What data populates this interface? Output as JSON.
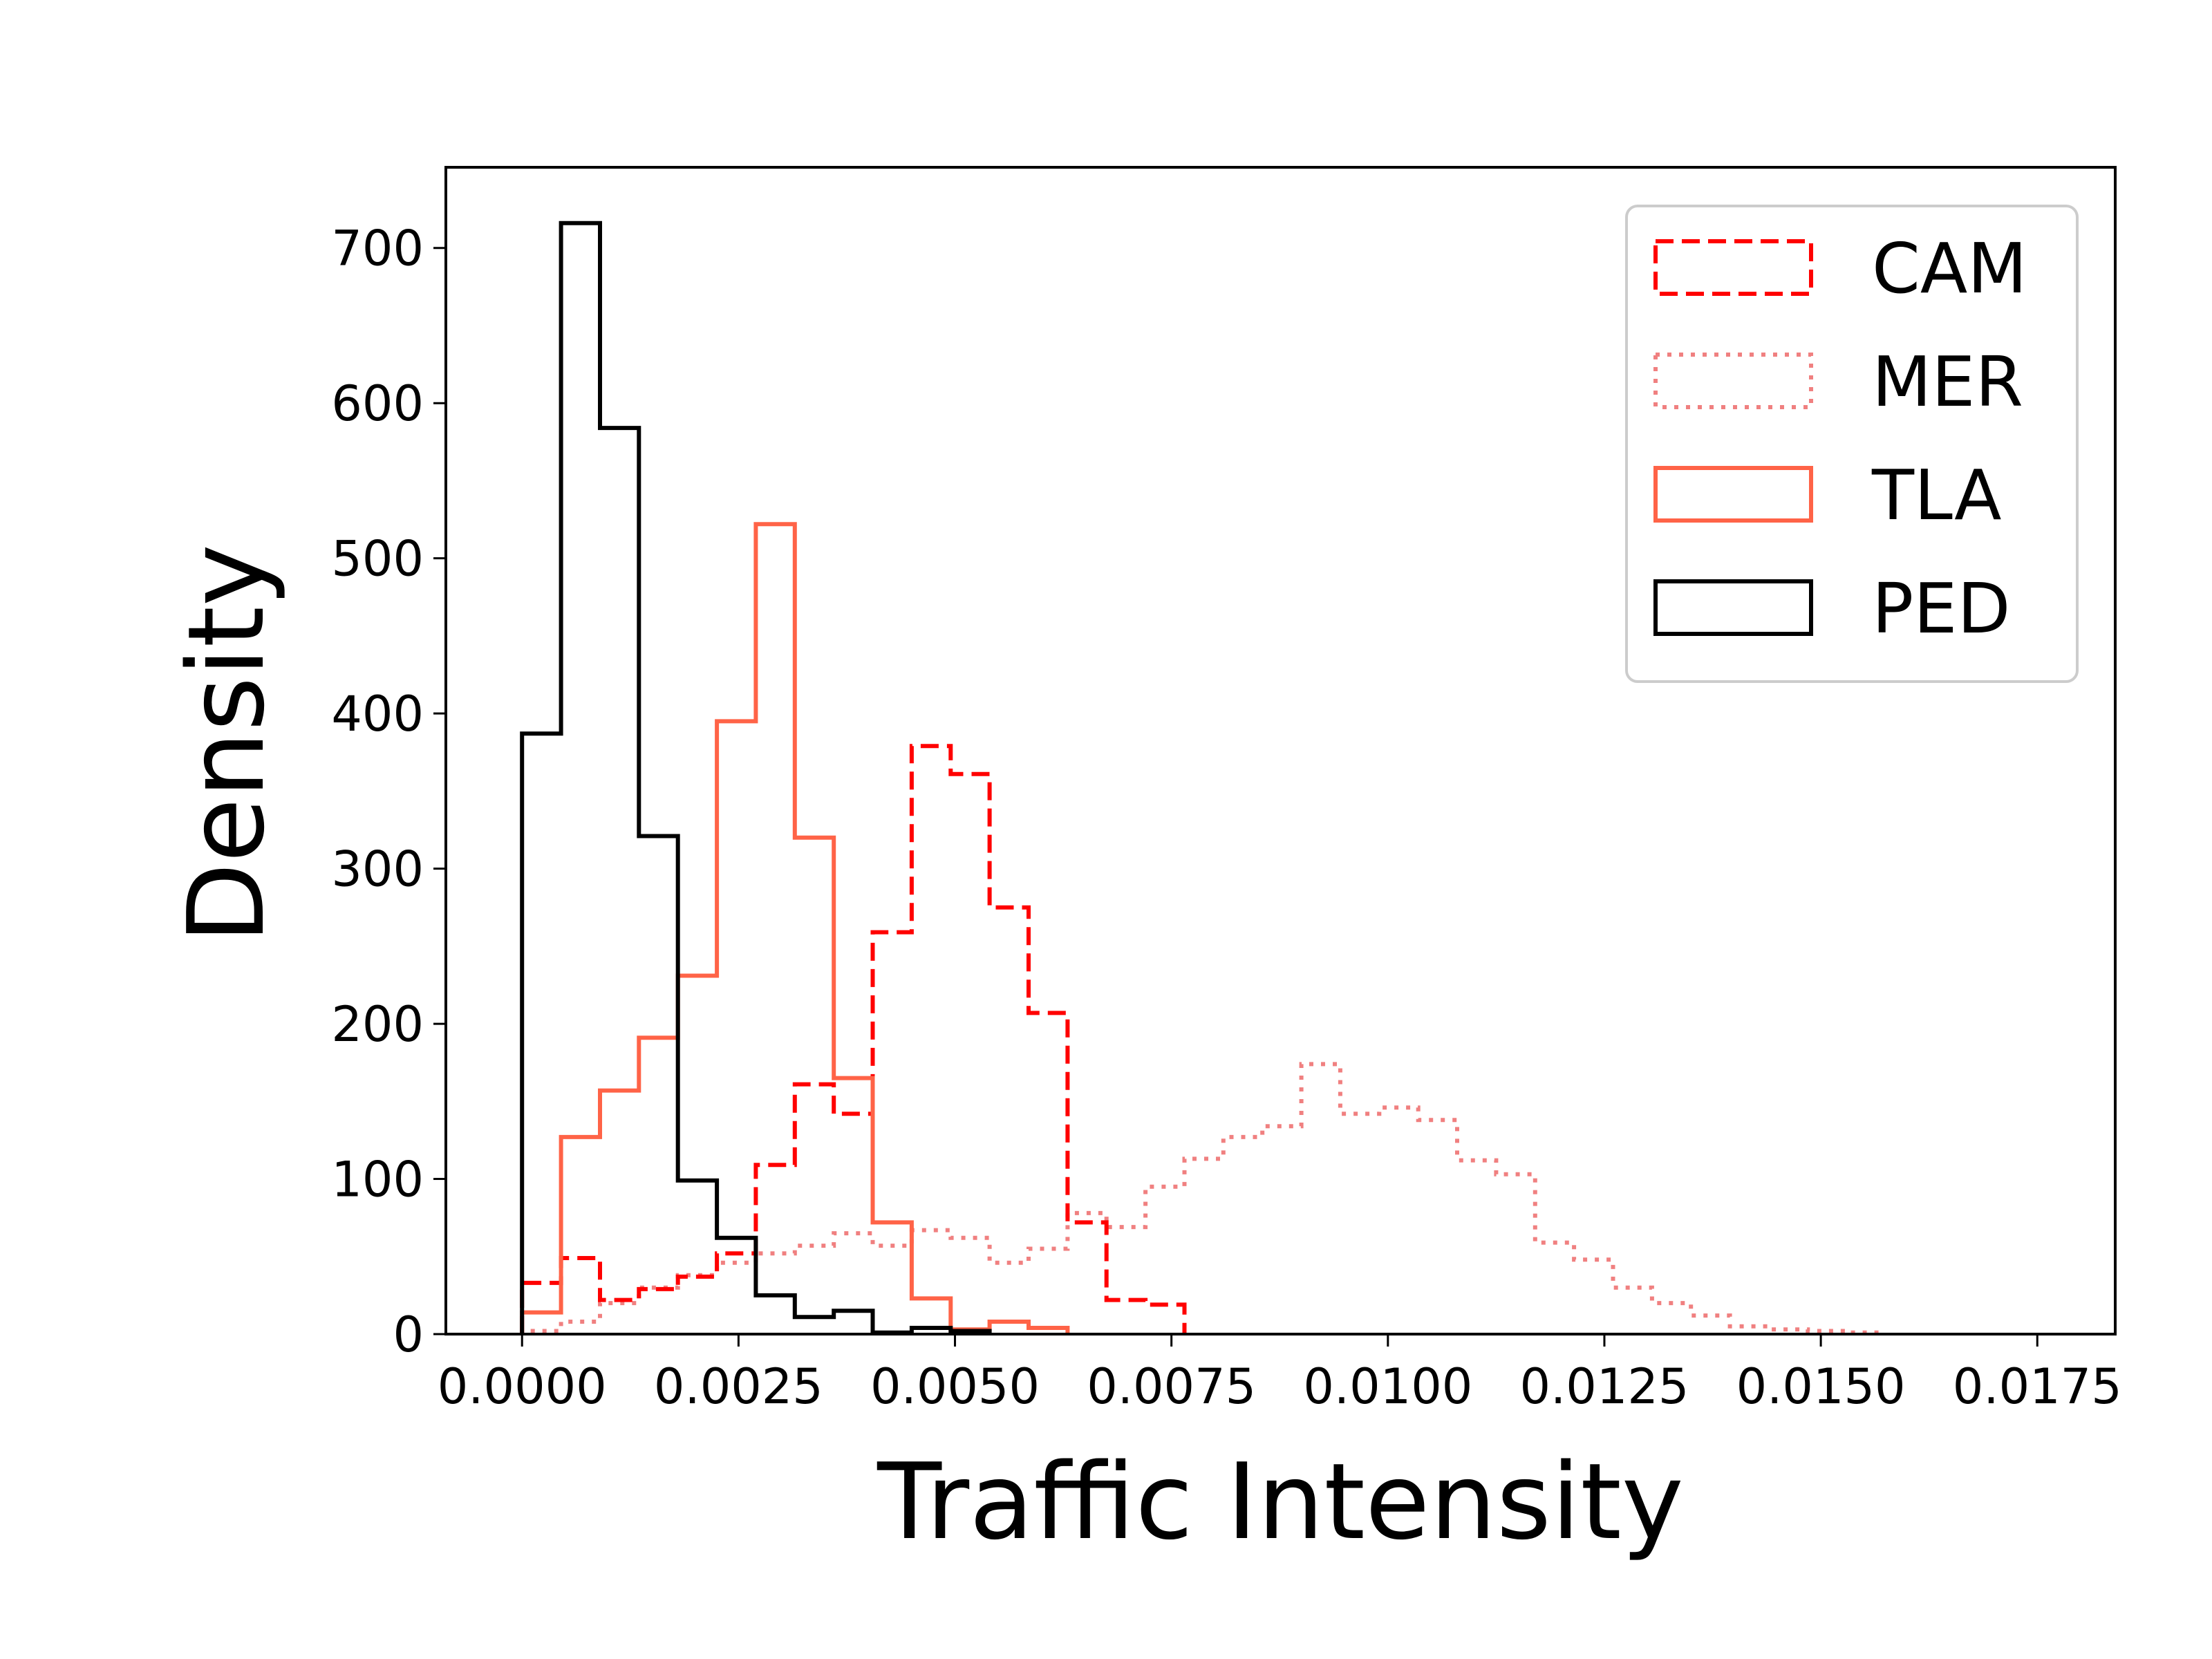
{
  "chart_data": {
    "type": "histogram-step",
    "title": "",
    "xlabel": "Traffic Intensity",
    "ylabel": "Density",
    "xlim": [
      -0.00088,
      0.0184
    ],
    "ylim": [
      0,
      752
    ],
    "xticks": [
      0.0,
      0.0025,
      0.005,
      0.0075,
      0.01,
      0.0125,
      0.015,
      0.0175
    ],
    "xtick_labels": [
      "0.0000",
      "0.0025",
      "0.0050",
      "0.0075",
      "0.0100",
      "0.0125",
      "0.0150",
      "0.0175"
    ],
    "yticks": [
      0,
      100,
      200,
      300,
      400,
      500,
      600,
      700
    ],
    "ytick_labels": [
      "0",
      "100",
      "200",
      "300",
      "400",
      "500",
      "600",
      "700"
    ],
    "grid": false,
    "legend_position": "top-right",
    "series": [
      {
        "name": "CAM",
        "color": "#ff0000",
        "style": "dashed",
        "edges": [
          0.0,
          0.00045,
          0.0009,
          0.00135,
          0.0018,
          0.00225,
          0.0027,
          0.00315,
          0.0036,
          0.00405,
          0.0045,
          0.00495,
          0.0054,
          0.00585,
          0.0063,
          0.00675,
          0.0072,
          0.00765
        ],
        "values": [
          33,
          49,
          22,
          29,
          37,
          52,
          109,
          161,
          142,
          259,
          379,
          361,
          275,
          207,
          72,
          22,
          19
        ]
      },
      {
        "name": "MER",
        "color": "#f08080",
        "style": "dotted",
        "edges": [
          0.0,
          0.00045,
          0.0009,
          0.00135,
          0.0018,
          0.00225,
          0.0027,
          0.00315,
          0.0036,
          0.00405,
          0.0045,
          0.00495,
          0.0054,
          0.00585,
          0.0063,
          0.00675,
          0.0072,
          0.00765,
          0.0081,
          0.00855,
          0.009,
          0.00945,
          0.0099,
          0.01035,
          0.0108,
          0.01125,
          0.0117,
          0.01215,
          0.0126,
          0.01305,
          0.0135,
          0.01395,
          0.0144,
          0.01485,
          0.0153,
          0.01575
        ],
        "values": [
          2,
          8,
          20,
          30,
          38,
          46,
          52,
          57,
          65,
          57,
          67,
          62,
          46,
          55,
          78,
          69,
          95,
          113,
          127,
          134,
          174,
          142,
          146,
          138,
          112,
          103,
          59,
          48,
          30,
          20,
          12,
          5,
          3,
          2,
          1
        ]
      },
      {
        "name": "TLA",
        "color": "#ff6347",
        "style": "solid",
        "edges": [
          0.0,
          0.00045,
          0.0009,
          0.00135,
          0.0018,
          0.00225,
          0.0027,
          0.00315,
          0.0036,
          0.00405,
          0.0045,
          0.00495,
          0.0054,
          0.00585,
          0.0063
        ],
        "values": [
          14,
          127,
          157,
          191,
          231,
          395,
          522,
          320,
          165,
          72,
          23,
          3,
          8,
          4
        ]
      },
      {
        "name": "PED",
        "color": "#000000",
        "style": "solid",
        "edges": [
          0.0,
          0.00045,
          0.0009,
          0.00135,
          0.0018,
          0.00225,
          0.0027,
          0.00315,
          0.0036,
          0.00405,
          0.0045,
          0.00495,
          0.0054
        ],
        "values": [
          387,
          716,
          584,
          321,
          99,
          62,
          25,
          11,
          15,
          1,
          4,
          2
        ]
      }
    ]
  }
}
